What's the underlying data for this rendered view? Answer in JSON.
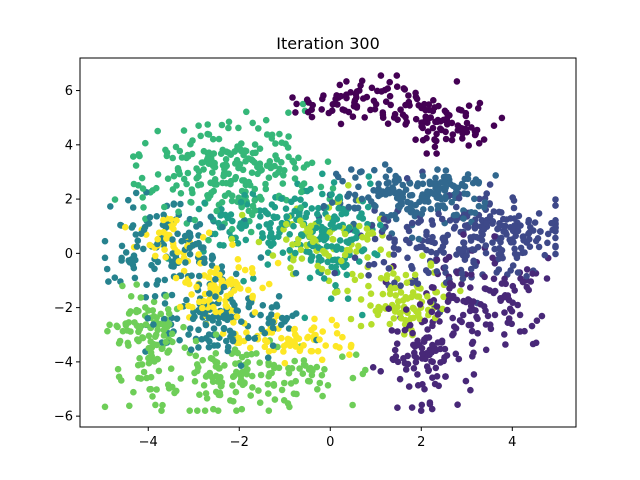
{
  "chart_data": {
    "type": "scatter",
    "title": "Iteration 300",
    "xlabel": "",
    "ylabel": "",
    "xlim": [
      -5.5,
      5.4
    ],
    "ylim": [
      -6.4,
      7.2
    ],
    "xticks": [
      -4,
      -2,
      0,
      2,
      4
    ],
    "yticks": [
      -6,
      -4,
      -2,
      0,
      2,
      4,
      6
    ],
    "xtick_labels": [
      "−4",
      "−2",
      "0",
      "2",
      "4"
    ],
    "ytick_labels": [
      "−6",
      "−4",
      "−2",
      "0",
      "2",
      "4",
      "6"
    ],
    "grid": false,
    "legend": "none",
    "colormap": "viridis",
    "clusters": [
      {
        "label": 0,
        "color": "#440154",
        "n": 160,
        "parts": [
          {
            "cx": 0.8,
            "cy": 5.6,
            "sx": 0.75,
            "sy": 0.45,
            "w": 0.5
          },
          {
            "cx": 2.5,
            "cy": 4.9,
            "sx": 0.55,
            "sy": 0.6,
            "w": 0.5
          }
        ]
      },
      {
        "label": 1,
        "color": "#482878",
        "n": 220,
        "parts": [
          {
            "cx": 2.1,
            "cy": -3.6,
            "sx": 0.4,
            "sy": 0.9,
            "w": 0.45
          },
          {
            "cx": 3.4,
            "cy": -1.8,
            "sx": 0.7,
            "sy": 0.9,
            "w": 0.55
          }
        ]
      },
      {
        "label": 2,
        "color": "#3e4989",
        "n": 260,
        "parts": [
          {
            "cx": 2.4,
            "cy": 0.3,
            "sx": 0.9,
            "sy": 0.9,
            "w": 0.55
          },
          {
            "cx": 3.9,
            "cy": 0.8,
            "sx": 0.6,
            "sy": 0.6,
            "w": 0.45
          }
        ]
      },
      {
        "label": 3,
        "color": "#31688e",
        "n": 180,
        "parts": [
          {
            "cx": 1.3,
            "cy": 2.1,
            "sx": 0.7,
            "sy": 0.6,
            "w": 0.6
          },
          {
            "cx": 2.6,
            "cy": 2.3,
            "sx": 0.5,
            "sy": 0.45,
            "w": 0.4
          }
        ]
      },
      {
        "label": 4,
        "color": "#26828e",
        "n": 260,
        "parts": [
          {
            "cx": -3.6,
            "cy": 0.3,
            "sx": 0.75,
            "sy": 0.9,
            "w": 0.5
          },
          {
            "cx": -2.2,
            "cy": -2.4,
            "sx": 0.8,
            "sy": 0.7,
            "w": 0.5
          }
        ]
      },
      {
        "label": 5,
        "color": "#1f9e89",
        "n": 220,
        "parts": [
          {
            "cx": 0.0,
            "cy": 0.3,
            "sx": 0.5,
            "sy": 1.0,
            "w": 0.5
          },
          {
            "cx": -1.2,
            "cy": 1.1,
            "sx": 0.8,
            "sy": 0.7,
            "w": 0.5
          }
        ]
      },
      {
        "label": 6,
        "color": "#35b779",
        "n": 240,
        "parts": [
          {
            "cx": -2.3,
            "cy": 3.0,
            "sx": 0.95,
            "sy": 0.9,
            "w": 1.0
          }
        ]
      },
      {
        "label": 7,
        "color": "#6ece58",
        "n": 260,
        "parts": [
          {
            "cx": -2.0,
            "cy": -4.5,
            "sx": 1.4,
            "sy": 0.65,
            "w": 0.65
          },
          {
            "cx": -4.0,
            "cy": -2.9,
            "sx": 0.4,
            "sy": 0.8,
            "w": 0.35
          }
        ]
      },
      {
        "label": 8,
        "color": "#b5de2b",
        "n": 180,
        "parts": [
          {
            "cx": 1.6,
            "cy": -1.7,
            "sx": 0.45,
            "sy": 0.6,
            "w": 0.5
          },
          {
            "cx": -0.2,
            "cy": 0.3,
            "sx": 0.8,
            "sy": 0.7,
            "w": 0.5
          }
        ]
      },
      {
        "label": 9,
        "color": "#fde725",
        "n": 200,
        "parts": [
          {
            "cx": -2.4,
            "cy": -1.5,
            "sx": 0.6,
            "sy": 0.6,
            "w": 0.45
          },
          {
            "cx": -0.8,
            "cy": -3.2,
            "sx": 0.6,
            "sy": 0.45,
            "w": 0.35
          },
          {
            "cx": -3.5,
            "cy": 0.5,
            "sx": 0.35,
            "sy": 0.5,
            "w": 0.2
          }
        ]
      }
    ]
  }
}
